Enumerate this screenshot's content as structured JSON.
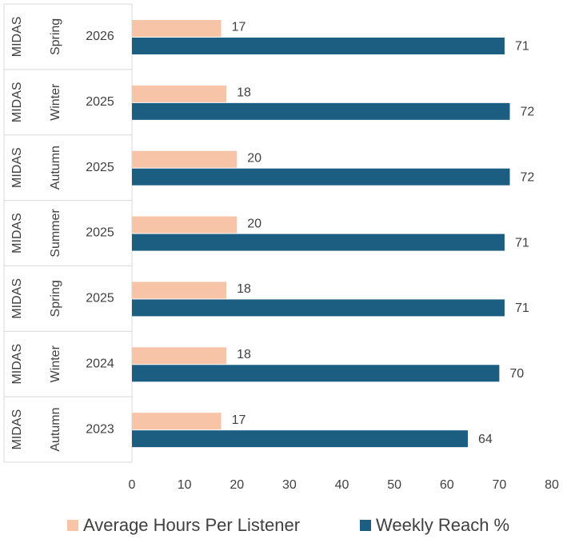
{
  "chart_data": {
    "type": "bar",
    "orientation": "horizontal",
    "categories": [
      [
        "MIDAS",
        "Spring",
        "2026"
      ],
      [
        "MIDAS",
        "Winter",
        "2025"
      ],
      [
        "MIDAS",
        "Autumn",
        "2025"
      ],
      [
        "MIDAS",
        "Summer",
        "2025"
      ],
      [
        "MIDAS",
        "Spring",
        "2025"
      ],
      [
        "MIDAS",
        "Winter",
        "2024"
      ],
      [
        "MIDAS",
        "Autumn",
        "2023"
      ]
    ],
    "series": [
      {
        "name": "Average Hours Per Listener",
        "color": "#f7c4a8",
        "values": [
          17,
          18,
          20,
          20,
          18,
          18,
          17
        ]
      },
      {
        "name": "Weekly Reach %",
        "color": "#1b5e82",
        "values": [
          71,
          72,
          72,
          71,
          71,
          70,
          64
        ]
      }
    ],
    "xlim": [
      0,
      80
    ],
    "xticks": [
      0,
      10,
      20,
      30,
      40,
      50,
      60,
      70,
      80
    ],
    "legend": "bottom"
  }
}
